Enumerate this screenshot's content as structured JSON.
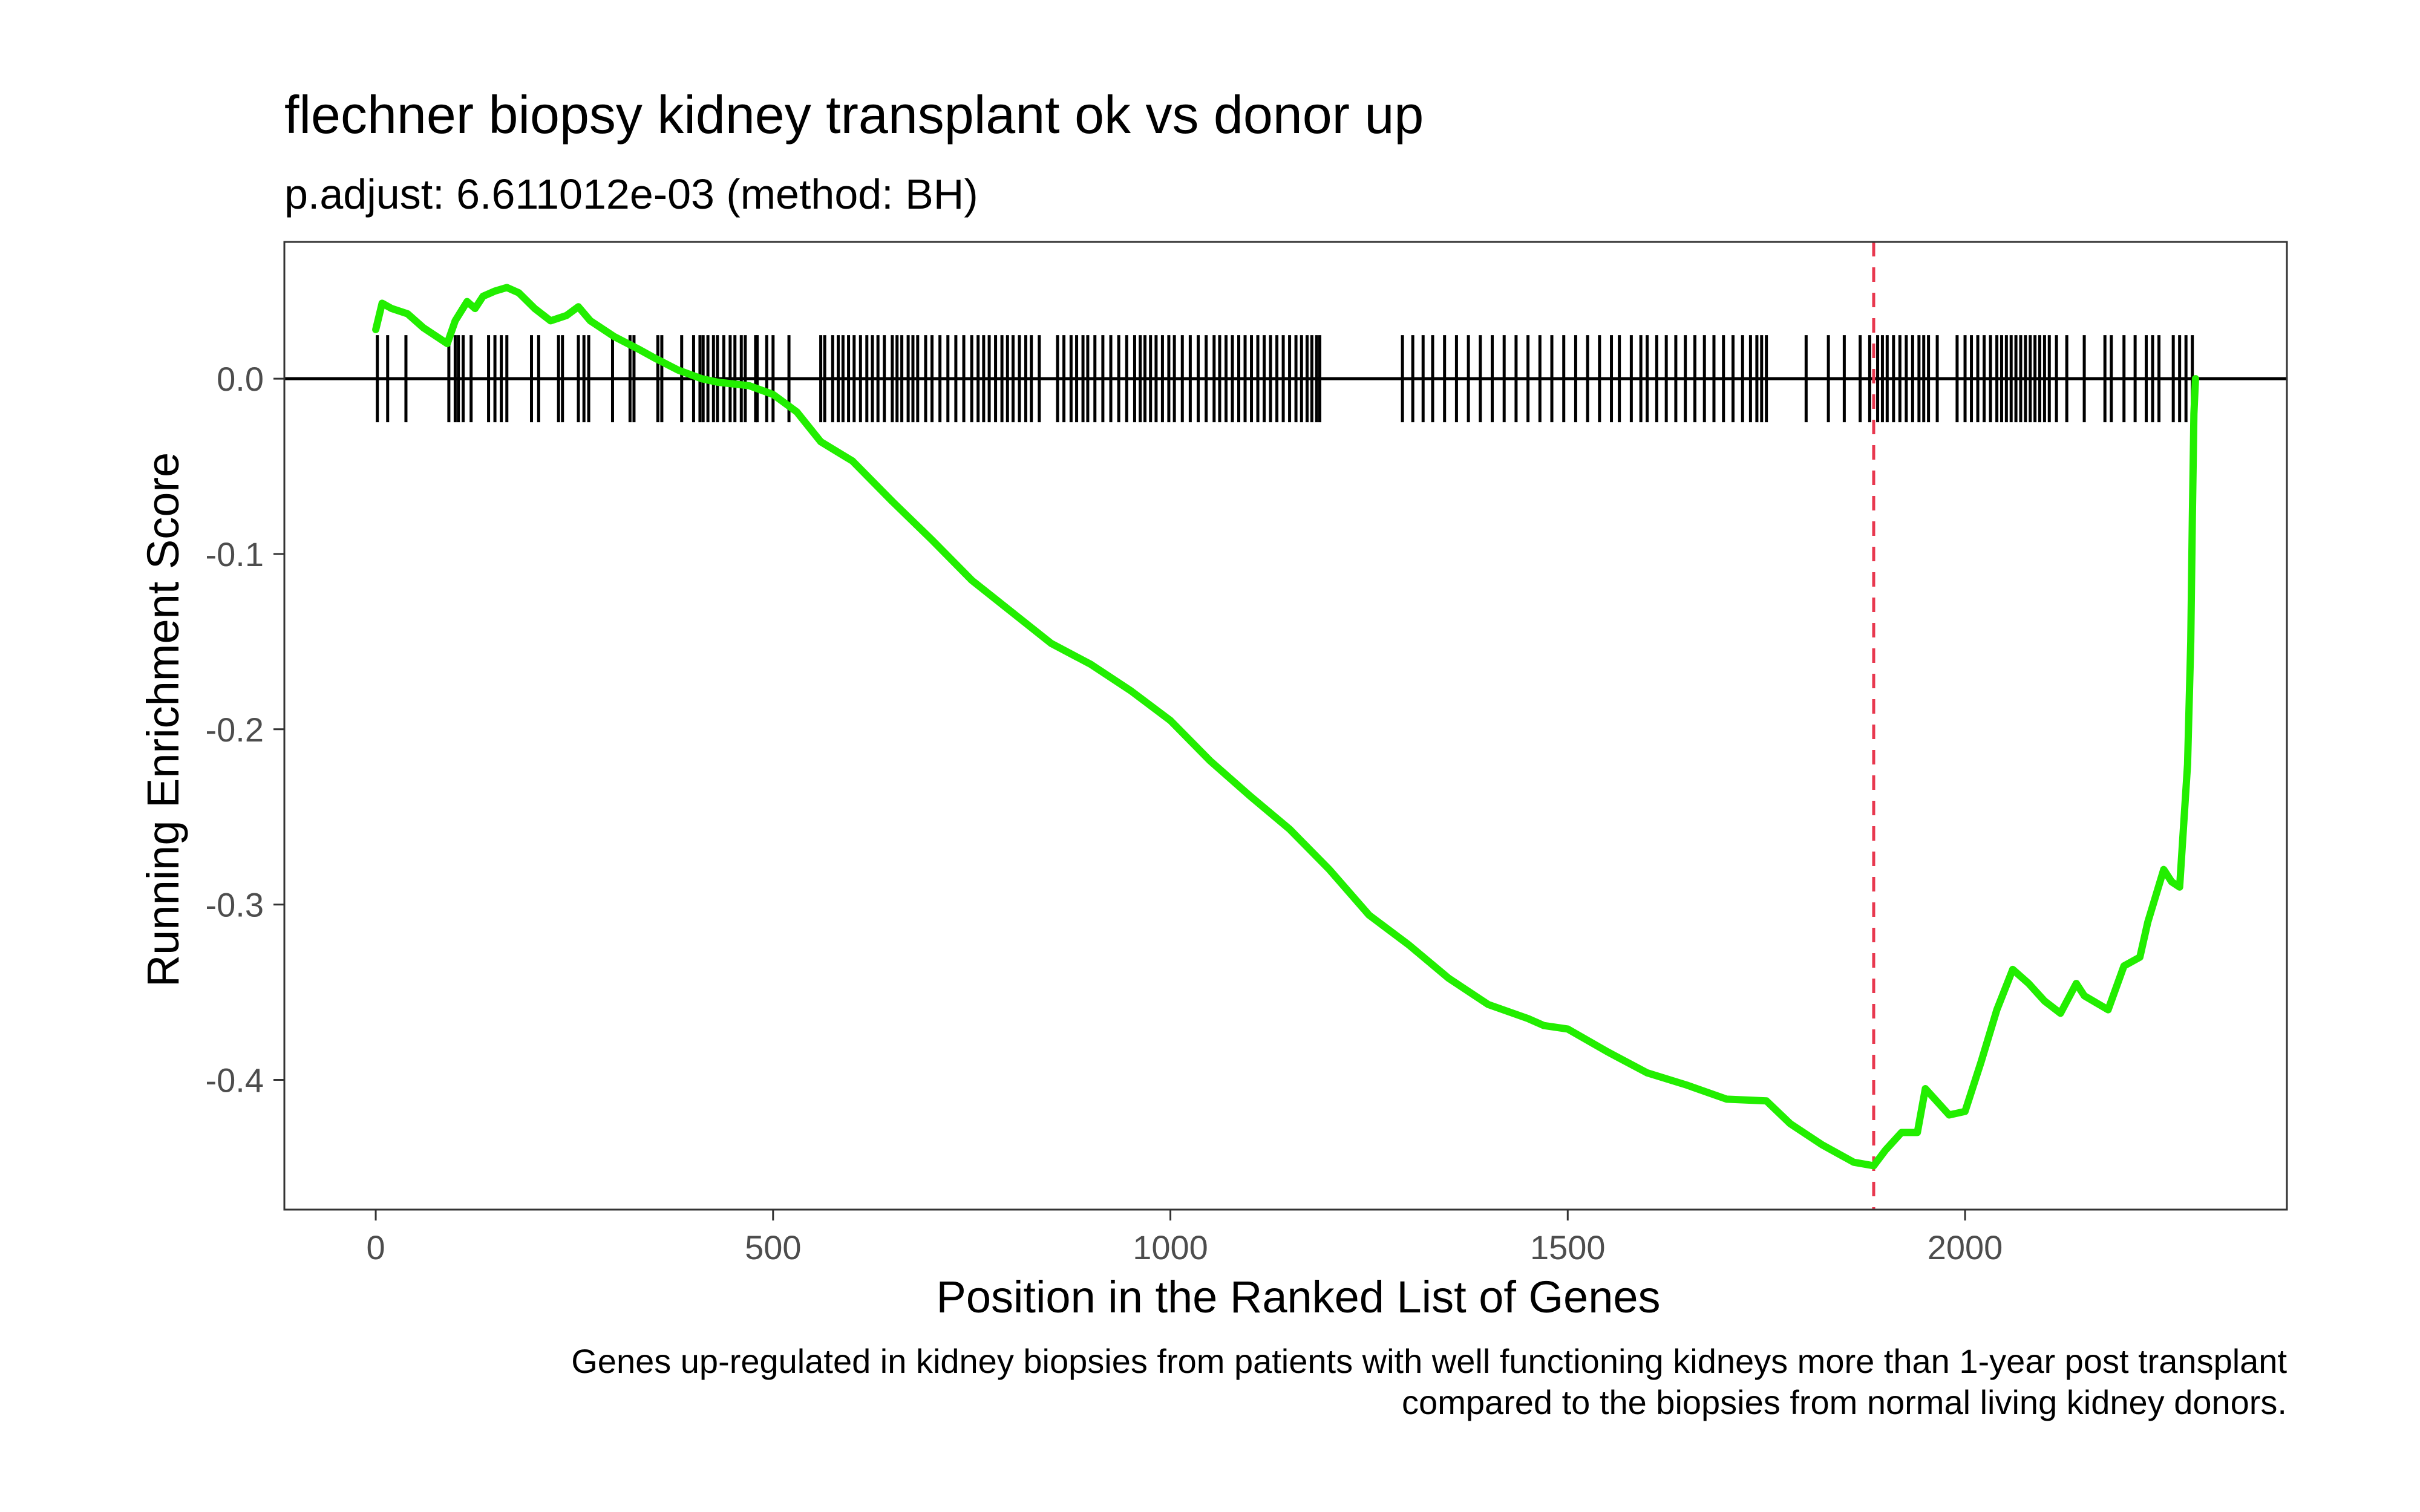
{
  "chart_data": {
    "type": "line",
    "title": "flechner biopsy kidney transplant ok vs donor up",
    "subtitle": "p.adjust: 6.611012e-03 (method: BH)",
    "xlabel": "Position in the Ranked List of Genes",
    "ylabel": "Running Enrichment Score",
    "caption": [
      "Genes up-regulated in kidney biopsies from patients with well functioning kidneys more than 1-year post transplant",
      "compared to the biopsies from normal living kidney donors."
    ],
    "xlim": [
      -115,
      2405
    ],
    "ylim": [
      -0.474,
      0.078
    ],
    "x_ticks": [
      0,
      500,
      1000,
      1500,
      2000
    ],
    "x_tick_labels": [
      "0",
      "500",
      "1000",
      "1500",
      "2000"
    ],
    "y_ticks": [
      0.0,
      -0.1,
      -0.2,
      -0.3,
      -0.4
    ],
    "y_tick_labels": [
      "0.0",
      "-0.1",
      "-0.2",
      "-0.3",
      "-0.4"
    ],
    "grid": false,
    "legend": "none",
    "reference_line_y": 0.0,
    "max_deviation_x": 1885,
    "colors": {
      "es_line": "#22ee00",
      "hits": "#000000",
      "zero_line": "#000000",
      "vline": "#e8384f",
      "panel_border": "#333333",
      "tick_text": "#4d4d4d"
    },
    "series": [
      {
        "x": [
          0,
          8,
          20,
          40,
          60,
          90,
          100,
          115,
          125,
          135,
          150,
          165,
          180,
          200,
          220,
          240,
          255,
          270,
          300,
          330,
          350,
          380,
          410,
          430,
          450,
          470,
          500,
          530,
          560,
          600,
          650,
          700,
          750,
          800,
          850,
          900,
          950,
          1000,
          1050,
          1100,
          1150,
          1200,
          1250,
          1300,
          1350,
          1400,
          1450,
          1470,
          1500,
          1550,
          1600,
          1650,
          1700,
          1750,
          1780,
          1820,
          1860,
          1885,
          1900,
          1920,
          1940,
          1950,
          1960,
          1980,
          2000,
          2020,
          2040,
          2060,
          2080,
          2100,
          2120,
          2140,
          2150,
          2180,
          2200,
          2220,
          2230,
          2250,
          2260,
          2270,
          2280,
          2284,
          2286,
          2288,
          2290
        ],
        "y": [
          0.028,
          0.043,
          0.04,
          0.037,
          0.029,
          0.02,
          0.033,
          0.044,
          0.04,
          0.047,
          0.05,
          0.052,
          0.049,
          0.04,
          0.033,
          0.036,
          0.041,
          0.033,
          0.024,
          0.017,
          0.012,
          0.005,
          0.0,
          -0.002,
          -0.003,
          -0.004,
          -0.009,
          -0.019,
          -0.036,
          -0.047,
          -0.07,
          -0.092,
          -0.115,
          -0.133,
          -0.151,
          -0.163,
          -0.178,
          -0.195,
          -0.218,
          -0.238,
          -0.257,
          -0.28,
          -0.306,
          -0.323,
          -0.342,
          -0.357,
          -0.365,
          -0.369,
          -0.371,
          -0.384,
          -0.396,
          -0.403,
          -0.411,
          -0.412,
          -0.425,
          -0.437,
          -0.447,
          -0.449,
          -0.44,
          -0.43,
          -0.43,
          -0.405,
          -0.41,
          -0.42,
          -0.418,
          -0.39,
          -0.36,
          -0.337,
          -0.345,
          -0.355,
          -0.362,
          -0.345,
          -0.352,
          -0.36,
          -0.335,
          -0.33,
          -0.31,
          -0.28,
          -0.287,
          -0.29,
          -0.22,
          -0.15,
          -0.08,
          -0.02,
          0.0
        ]
      }
    ],
    "hits": [
      2,
      15,
      38,
      92,
      100,
      104,
      110,
      120,
      142,
      150,
      158,
      165,
      196,
      205,
      230,
      235,
      255,
      262,
      268,
      298,
      320,
      325,
      355,
      360,
      385,
      400,
      408,
      412,
      418,
      425,
      430,
      438,
      446,
      452,
      460,
      465,
      478,
      480,
      492,
      500,
      520,
      560,
      565,
      575,
      582,
      588,
      595,
      602,
      610,
      618,
      625,
      632,
      640,
      650,
      656,
      662,
      670,
      676,
      682,
      692,
      700,
      710,
      720,
      730,
      740,
      750,
      758,
      765,
      772,
      780,
      788,
      795,
      802,
      810,
      818,
      825,
      835,
      858,
      866,
      875,
      882,
      890,
      896,
      905,
      915,
      925,
      935,
      945,
      955,
      962,
      968,
      975,
      982,
      990,
      998,
      1005,
      1015,
      1025,
      1035,
      1045,
      1055,
      1062,
      1070,
      1078,
      1086,
      1094,
      1102,
      1110,
      1118,
      1126,
      1134,
      1142,
      1150,
      1158,
      1165,
      1172,
      1178,
      1184,
      1188,
      1292,
      1305,
      1318,
      1330,
      1345,
      1360,
      1375,
      1390,
      1405,
      1420,
      1435,
      1450,
      1465,
      1480,
      1495,
      1510,
      1525,
      1540,
      1555,
      1565,
      1580,
      1592,
      1600,
      1612,
      1624,
      1636,
      1648,
      1660,
      1672,
      1684,
      1696,
      1708,
      1720,
      1730,
      1738,
      1744,
      1750,
      1800,
      1828,
      1848,
      1868,
      1880,
      1890,
      1896,
      1902,
      1910,
      1918,
      1926,
      1934,
      1942,
      1948,
      1954,
      1965,
      1990,
      2000,
      2008,
      2016,
      2024,
      2032,
      2040,
      2046,
      2052,
      2058,
      2064,
      2070,
      2076,
      2082,
      2088,
      2094,
      2100,
      2106,
      2115,
      2128,
      2150,
      2176,
      2184,
      2200,
      2214,
      2228,
      2236,
      2244,
      2262,
      2270,
      2278,
      2286
    ]
  }
}
